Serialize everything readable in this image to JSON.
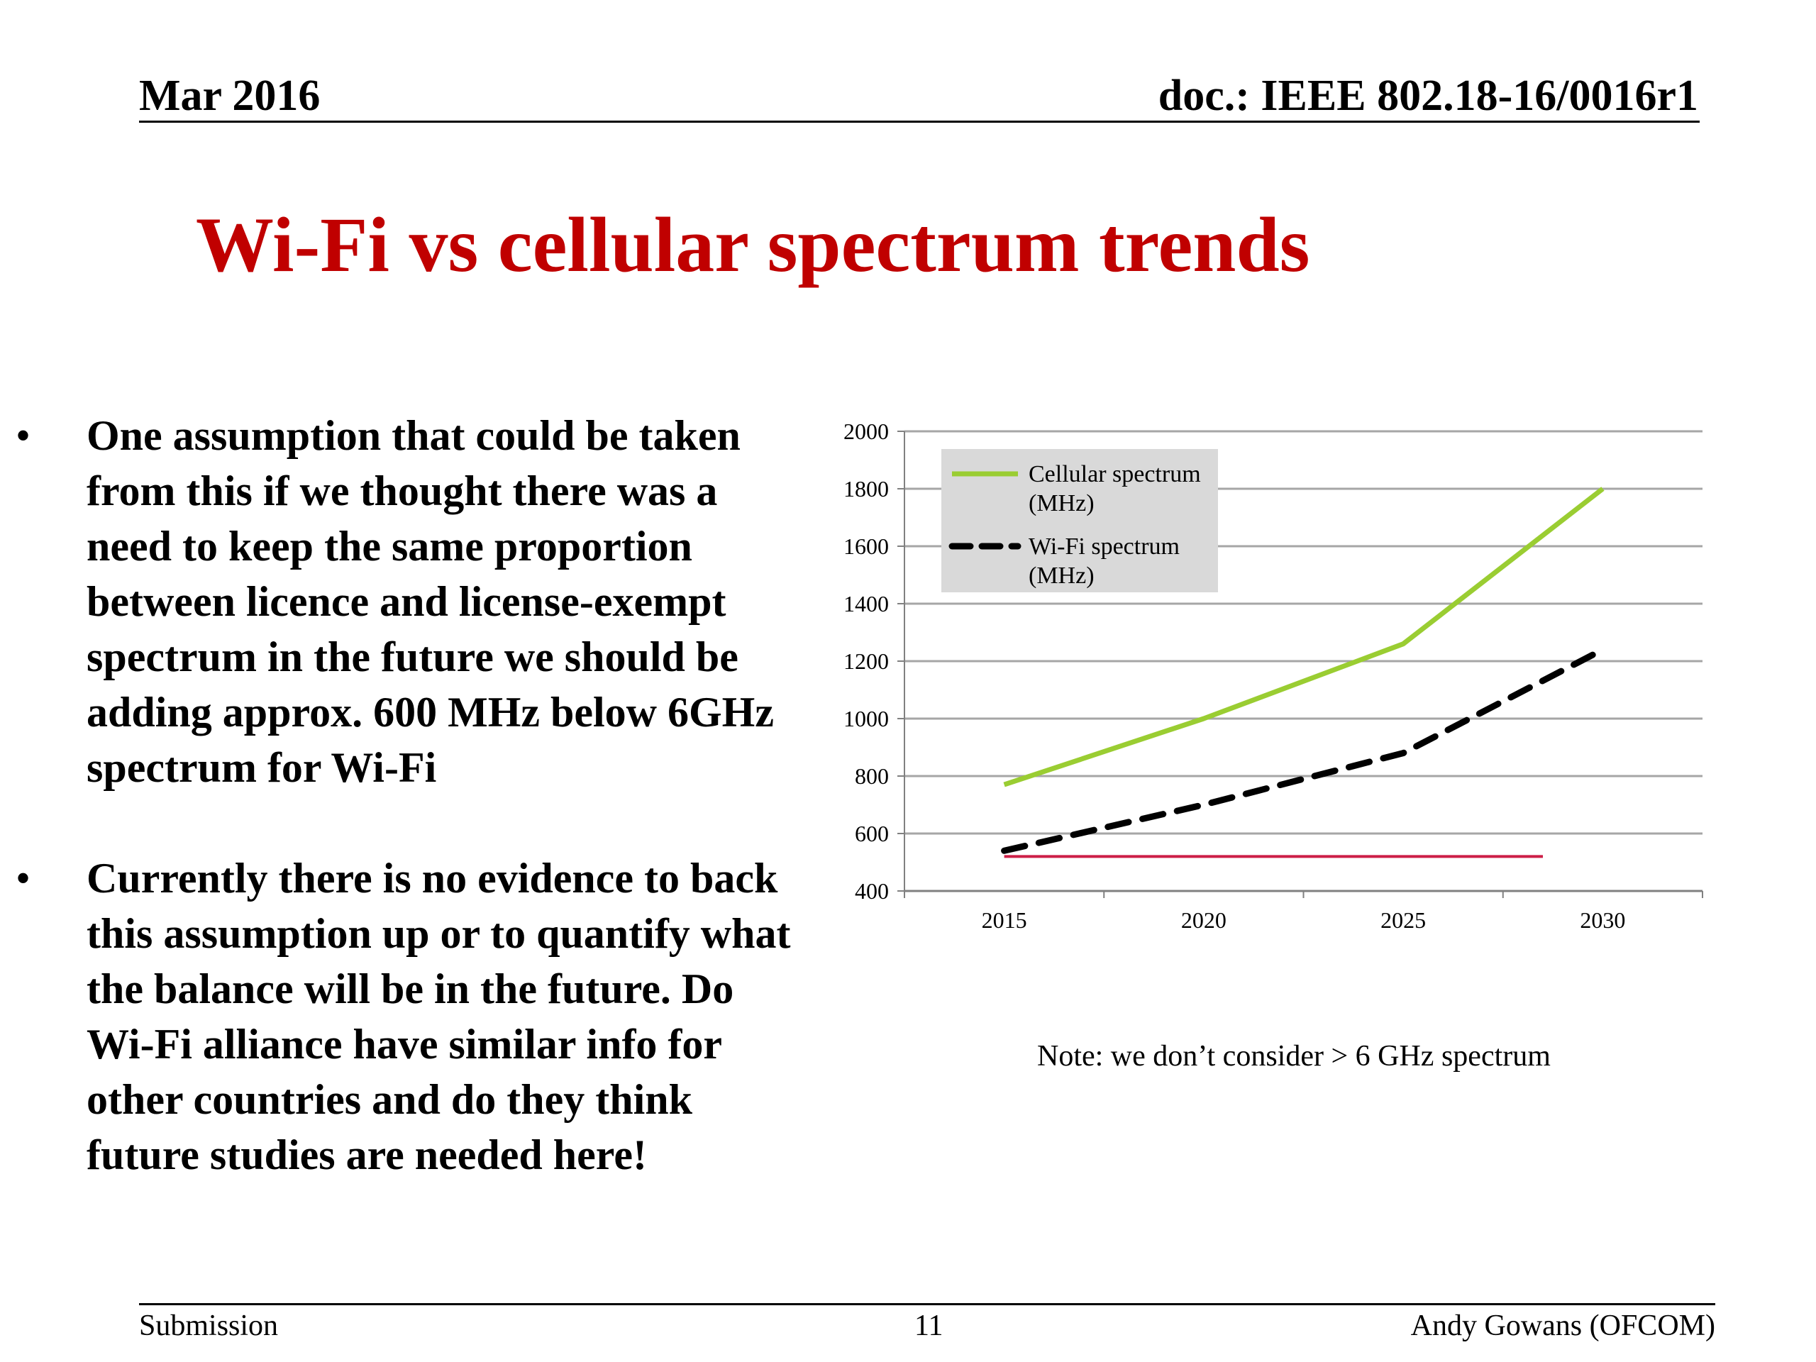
{
  "header": {
    "date": "Mar 2016",
    "doc": "doc.: IEEE 802.18-16/0016r1"
  },
  "title": "Wi-Fi vs cellular spectrum trends",
  "bullets": [
    {
      "marker": "•",
      "text": "One assumption that could be taken from this if we thought there was a need to keep the same proportion between licence and license-exempt spectrum in the future we should be adding approx. 600 MHz below 6GHz spectrum for Wi-Fi"
    },
    {
      "marker": "•",
      "text": "Currently there is no evidence to back this assumption up or to quantify what the balance will be in the future. Do Wi-Fi alliance have similar info for other countries and do they think future studies are needed here!"
    }
  ],
  "note": "Note: we don’t consider > 6 GHz spectrum",
  "footer": {
    "left": "Submission",
    "page": "11",
    "right": "Andy Gowans (OFCOM)"
  },
  "chart_data": {
    "type": "line",
    "title": "",
    "xlabel": "",
    "ylabel": "",
    "categories": [
      "2015",
      "2020",
      "2025",
      "2030"
    ],
    "ylim": [
      400,
      2000
    ],
    "yticks": [
      400,
      600,
      800,
      1000,
      1200,
      1400,
      1600,
      1800,
      2000
    ],
    "grid": true,
    "legend_position": "top-left",
    "series": [
      {
        "name": "Cellular spectrum (MHz)",
        "legend_lines": [
          "Cellular spectrum",
          "(MHz)"
        ],
        "values": [
          770,
          1000,
          1260,
          1800
        ],
        "color": "#9acd32",
        "style": "solid"
      },
      {
        "name": "Wi-Fi spectrum (MHz)",
        "legend_lines": [
          "Wi-Fi spectrum",
          "(MHz)"
        ],
        "values": [
          540,
          700,
          880,
          1240
        ],
        "color": "#000000",
        "style": "dashed"
      },
      {
        "values": [
          520,
          520,
          520,
          520
        ],
        "end_x": 2028.5,
        "color": "#cc1f47",
        "style": "solid"
      }
    ]
  }
}
